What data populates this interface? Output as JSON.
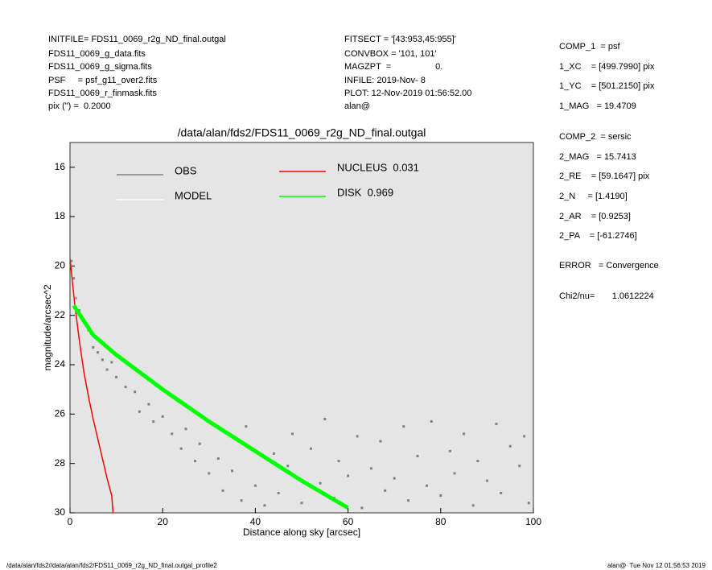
{
  "info_left": [
    "INITFILE= FDS11_0069_r2g_ND_final.outgal",
    "FDS11_0069_g_data.fits",
    "FDS11_0069_g_sigma.fits",
    "PSF     = psf_g11_over2.fits",
    "FDS11_0069_r_finmask.fits",
    "pix (\") =  0.2000"
  ],
  "info_middle": [
    "FITSECT = '[43:953,45:955]'",
    "CONVBOX = '101, 101'",
    "MAGZPT  =                  0.",
    "INFILE: 2019-Nov- 8",
    "PLOT: 12-Nov-2019 01:56:52.00",
    "alan@"
  ],
  "info_right": [
    "COMP_1  = psf",
    "1_XC    = [499.7990] pix",
    "1_YC    = [501.2150] pix",
    "1_MAG   = 19.4709",
    "COMP_2  = sersic",
    "2_MAG   = 15.7413",
    "2_RE    = [59.1647] pix",
    "2_N     = [1.4190]",
    "2_AR    = [0.9253]",
    "2_PA    = [-61.2746]",
    "ERROR   = Convergence",
    "Chi2/nu=       1.0612224"
  ],
  "footer_left": "/data/alan/fds2//data/alan/fds2/FDS11_0069_r2g_ND_final.outgal_profile2",
  "footer_right": "alan@  Tue Nov 12 01:56:53 2019",
  "chart_data": {
    "type": "scatter",
    "title": "/data/alan/fds2/FDS11_0069_r2g_ND_final.outgal",
    "x_label": "Distance along sky [arcsec]",
    "y_label": "magnitude/arcsec^2",
    "xlim": [
      0,
      100
    ],
    "ylim": [
      30,
      15
    ],
    "xticks": [
      0,
      20,
      40,
      60,
      80,
      100
    ],
    "yticks": [
      16,
      18,
      20,
      22,
      24,
      26,
      28,
      30
    ],
    "background": "#e5e5e5",
    "series": [
      {
        "name": "OBS",
        "color": "#808080",
        "style": "points",
        "x": [
          0.3,
          0.8,
          1.2,
          2,
          3,
          4,
          5,
          6,
          7,
          8,
          9,
          10,
          12,
          14,
          15,
          17,
          18,
          20,
          22,
          24,
          25,
          27,
          28,
          30,
          32,
          33,
          35,
          37,
          38,
          40,
          42,
          44,
          45,
          47,
          48,
          50,
          52,
          54,
          55,
          57,
          58,
          60,
          62,
          63,
          65,
          67,
          68,
          70,
          72,
          73,
          75,
          77,
          78,
          80,
          82,
          83,
          85,
          87,
          88,
          90,
          92,
          93,
          95,
          97,
          98,
          99
        ],
        "values": [
          19.8,
          20.5,
          21.3,
          21.8,
          22.2,
          22.6,
          23.3,
          23.5,
          23.8,
          24.2,
          23.9,
          24.5,
          24.9,
          25.1,
          25.9,
          25.6,
          26.3,
          26.1,
          26.8,
          27.4,
          26.6,
          27.9,
          27.2,
          28.4,
          27.8,
          29.1,
          28.3,
          29.5,
          26.5,
          28.9,
          29.7,
          27.6,
          29.2,
          28.1,
          26.8,
          29.6,
          27.4,
          28.8,
          26.2,
          29.4,
          27.9,
          28.5,
          26.9,
          29.8,
          28.2,
          27.1,
          29.1,
          28.6,
          26.5,
          29.5,
          27.7,
          28.9,
          26.3,
          29.3,
          27.5,
          28.4,
          26.8,
          29.7,
          27.9,
          28.7,
          26.4,
          29.2,
          27.3,
          28.1,
          26.9,
          29.6
        ]
      },
      {
        "name": "MODEL",
        "color": "#ffffff",
        "style": "line",
        "x": [
          0,
          0.5,
          1,
          2,
          5,
          10,
          20,
          30,
          40,
          50,
          60
        ],
        "values": [
          19.7,
          20.6,
          21.3,
          21.9,
          22.7,
          23.6,
          25.0,
          26.3,
          27.5,
          28.7,
          29.8
        ]
      },
      {
        "name": "NUCLEUS  0.031",
        "color": "#ff0000",
        "style": "line",
        "x": [
          0,
          1,
          2,
          3,
          4,
          5,
          6,
          7,
          8,
          9,
          9.3
        ],
        "values": [
          19.7,
          21.5,
          23.0,
          24.3,
          25.3,
          26.2,
          27.0,
          27.8,
          28.6,
          29.3,
          30.0
        ]
      },
      {
        "name": "DISK  0.969",
        "color": "#00ff00",
        "style": "line",
        "x": [
          0.8,
          5,
          10,
          20,
          30,
          40,
          50,
          60
        ],
        "values": [
          21.6,
          22.8,
          23.6,
          25.0,
          26.3,
          27.5,
          28.7,
          29.8
        ]
      }
    ]
  }
}
